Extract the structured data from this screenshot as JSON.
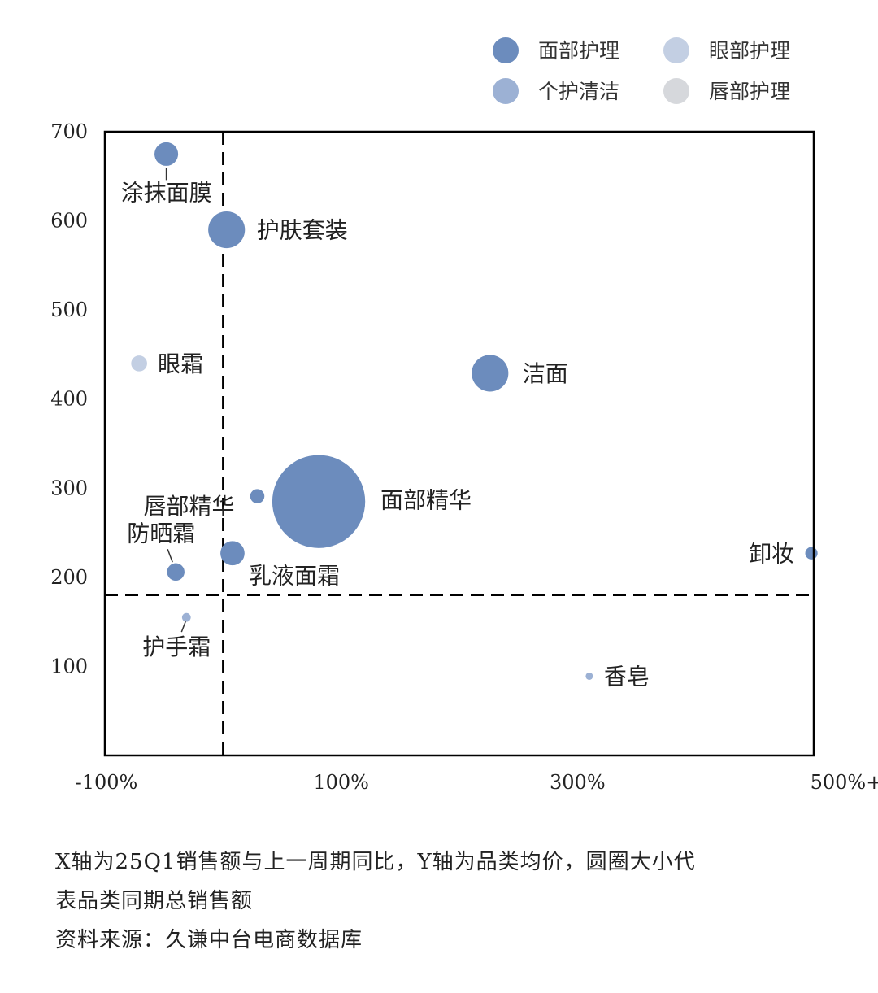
{
  "chart_data": {
    "type": "scatter",
    "bubble": true,
    "x_unit": "%",
    "xlim": [
      -100,
      500
    ],
    "ylim": [
      0,
      700
    ],
    "x_ticks": [
      "-100%",
      "100%",
      "300%",
      "500%+"
    ],
    "y_ticks": [
      "100",
      "200",
      "300",
      "400",
      "500",
      "600",
      "700"
    ],
    "reference_lines": {
      "x": 0,
      "y": 180
    },
    "legend_position": "top-right",
    "legend": [
      {
        "name": "面部护理",
        "color": "#6c8cbd"
      },
      {
        "name": "眼部护理",
        "color": "#c3cfe3"
      },
      {
        "name": "个护清洁",
        "color": "#9cb1d4"
      },
      {
        "name": "唇部护理",
        "color": "#d6d8dc"
      }
    ],
    "points": [
      {
        "label": "涂抹面膜",
        "x": -48,
        "y": 675,
        "size": 2.2,
        "category": "面部护理"
      },
      {
        "label": "护肤套装",
        "x": 3,
        "y": 590,
        "size": 5.3,
        "category": "面部护理"
      },
      {
        "label": "眼霜",
        "x": -71,
        "y": 440,
        "size": 1.0,
        "category": "眼部护理"
      },
      {
        "label": "洁面",
        "x": 226,
        "y": 429,
        "size": 5.3,
        "category": "面部护理"
      },
      {
        "label": "唇部精华",
        "x": 29,
        "y": 291,
        "size": 0.8,
        "category": "面部护理"
      },
      {
        "label": "面部精华",
        "x": 81,
        "y": 285,
        "size": 34,
        "category": "面部护理"
      },
      {
        "label": "防晒霜",
        "x": -40,
        "y": 206,
        "size": 1.2,
        "category": "面部护理"
      },
      {
        "label": "乳液面霜",
        "x": 8,
        "y": 227,
        "size": 2.3,
        "category": "面部护理"
      },
      {
        "label": "卸妆",
        "x": 498,
        "y": 227,
        "size": 0.6,
        "category": "面部护理"
      },
      {
        "label": "护手霜",
        "x": -31,
        "y": 155,
        "size": 0.3,
        "category": "个护清洁"
      },
      {
        "label": "香皂",
        "x": 310,
        "y": 89,
        "size": 0.2,
        "category": "个护清洁"
      }
    ]
  },
  "notes": {
    "line1": "X轴为25Q1销售额与上一周期同比，Y轴为品类均价，圆圈大小代",
    "line2": "表品类同期总销售额",
    "line3": "资料来源：久谦中台电商数据库"
  }
}
